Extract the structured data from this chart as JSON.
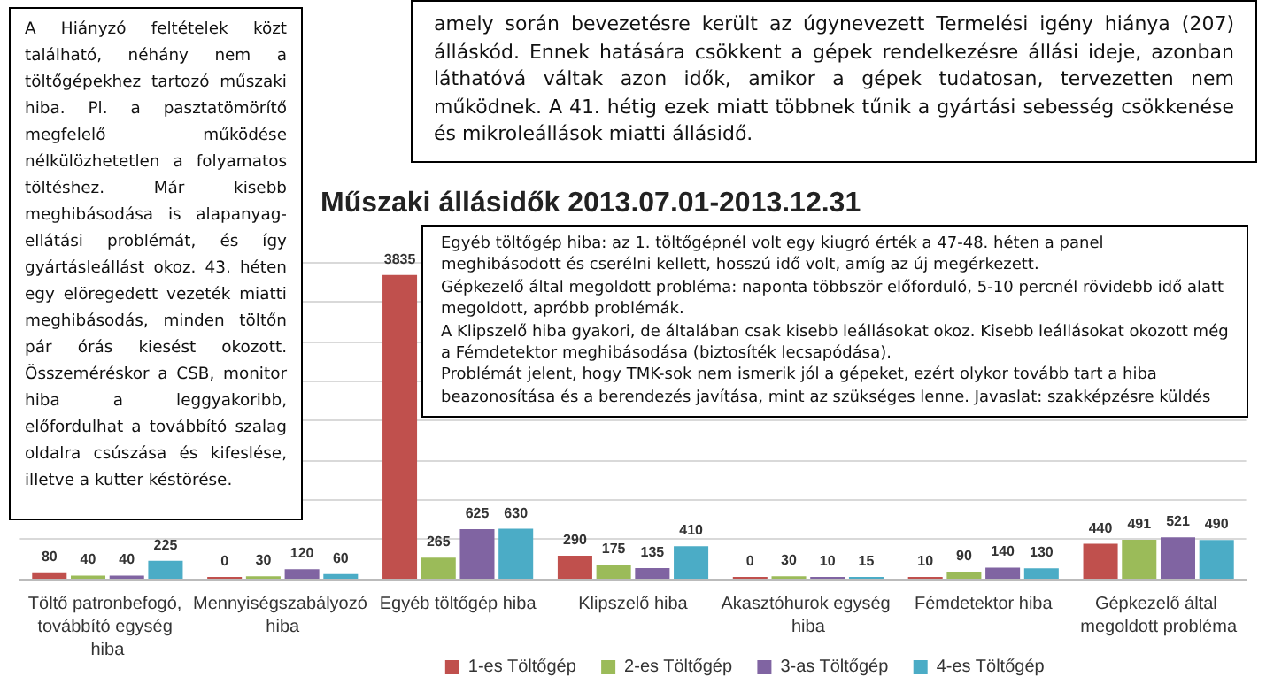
{
  "chart_data": {
    "type": "bar",
    "title": "Műszaki állásidők 2013.07.01-2013.12.31",
    "categories": [
      "Töltő patronbefogó, továbbító egység hiba",
      "Mennyiségszabályozó hiba",
      "Egyéb töltőgép hiba",
      "Klipszelő hiba",
      "Akasztóhurok egység hiba",
      "Fémdetektor hiba",
      "Gépkezelő által megoldott probléma"
    ],
    "series": [
      {
        "name": "1-es Töltőgép",
        "color": "#c0504d",
        "values": [
          80,
          0,
          3835,
          290,
          0,
          10,
          440
        ]
      },
      {
        "name": "2-es Töltőgép",
        "color": "#9bbb59",
        "values": [
          40,
          30,
          265,
          175,
          30,
          90,
          491
        ]
      },
      {
        "name": "3-as Töltőgép",
        "color": "#8064a2",
        "values": [
          40,
          120,
          625,
          135,
          10,
          140,
          521
        ]
      },
      {
        "name": "4-es Töltőgép",
        "color": "#4bacc6",
        "values": [
          225,
          60,
          630,
          410,
          15,
          130,
          490
        ]
      }
    ],
    "ylim": [
      0,
      4000
    ],
    "yticks": [
      {
        "value": 0,
        "label": null
      },
      {
        "value": 500,
        "label": null
      },
      {
        "value": 1000,
        "label": null
      },
      {
        "value": 1500,
        "label": null
      },
      {
        "value": 2000,
        "label": null
      },
      {
        "value": 2500,
        "label": null
      },
      {
        "value": 3000,
        "label": null
      },
      {
        "value": 3500,
        "label": null
      },
      {
        "value": 4000,
        "label": null
      }
    ],
    "tick_labels": "x",
    "grid": "y",
    "legend": "bottom right",
    "data_labels": true,
    "annotations": [
      "A Hiányzó feltételek közt található, néhány nem a töltőgépekhez tartozó műszaki hiba. Pl. a pasztatömörítő megfelelő működése nélkülözhetetlen a folyamatos töltéshez. Már kisebb meghibásodása is alapanyag-ellátási problémát, és így gyártásleállást okoz. 43. héten egy elöregedett vezeték miatti meghibásodás, minden töltőn pár órás kiesést okozott. Összeméréskor a CSB, monitor hiba a leggyakoribb, előfordulhat a továbbító szalag oldalra csúszása és kifeslése, illetve a kutter késtörése.",
      "amely során bevezetésre került az úgynevezett Termelési igény hiánya (207) álláskód. Ennek hatására csökkent a gépek rendelkezésre állási ideje, azonban láthatóvá váltak azon idők, amikor a gépek tudatosan, tervezetten nem működnek. A 41. hétig ezek miatt többnek tűnik a gyártási sebesség csökkenése és mikroleállások miatti állásidő.",
      "Egyéb töltőgép hiba: az 1. töltőgépnél volt egy kiugró érték a 47-48. héten a panel meghibásodott és cserélni kellett, hosszú idő volt, amíg az új megérkezett.\nGépkezelő által megoldott probléma: naponta többször előforduló, 5-10 percnél rövidebb idő alatt megoldott, apróbb problémák.\nA Klipszelő hiba gyakori, de általában csak kisebb leállásokat okoz. Kisebb leállásokat okozott még a Fémdetektor meghibásodása (biztosíték lecsapódása).\nProblémát jelent, hogy TMK-sok nem ismerik jól a gépeket, ezért olykor tovább tart a hiba beazonosítása és a berendezés javítása, mint az szükséges lenne. Javaslat: szakképzésre küldés"
    ]
  }
}
